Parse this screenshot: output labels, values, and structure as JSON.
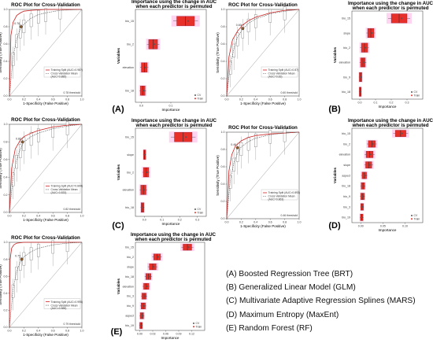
{
  "key_lines": [
    "(A) Boosted Regression Tree (BRT)",
    "(B) Generalized Linear Model (GLM)",
    "(C) Multivariate Adaptive Regression Splines (MARS)",
    "(D) Maximum Entropy (MaxEnt)",
    "(E) Random Forest (RF)"
  ],
  "colors": {
    "train": "#cc2222",
    "cv": "#444444",
    "box": "#e8302a",
    "halo": "#ff66cc",
    "ref": "#999999"
  },
  "chart_data": [
    {
      "panel": "(A)",
      "roc": {
        "type": "line",
        "title": "ROC Plot for Cross-Validation",
        "xlabel": "1-Specificity (False Positive)",
        "ylabel": "Sensitivity (True Positive)",
        "xlim": [
          0,
          1
        ],
        "ylim": [
          0,
          1
        ],
        "legend": [
          "Training Split (AUC=0.98?)",
          "Cross-Validation Mean",
          "(AUC=0.885)"
        ],
        "threshold_label": "0.78 threshold",
        "cutoff_label": "0.78",
        "threshold_point": [
          0.16,
          0.8
        ],
        "series": [
          {
            "name": "Training Split",
            "x": [
              0,
              0.02,
              0.05,
              0.1,
              0.15,
              0.2,
              0.3,
              0.5,
              0.7,
              1
            ],
            "y": [
              0,
              0.7,
              0.85,
              0.93,
              0.96,
              0.98,
              0.99,
              1,
              1,
              1
            ]
          },
          {
            "name": "Cross-Validation Mean",
            "x": [
              0,
              0.05,
              0.1,
              0.15,
              0.2,
              0.3,
              0.4,
              0.5,
              0.7,
              1
            ],
            "y": [
              0,
              0.45,
              0.66,
              0.77,
              0.83,
              0.9,
              0.94,
              0.96,
              0.99,
              1
            ]
          }
        ]
      },
      "importance": {
        "type": "bar",
        "title": "Importance using the change in AUC when each predictor is permuted",
        "xlabel": "Importance",
        "ylabel": "Variables",
        "xlim": [
          -0.02,
          0.22
        ],
        "xticks": [
          "0.0",
          "0.1"
        ],
        "legend": [
          "CV",
          "Train"
        ],
        "categories": [
          "bio_15",
          "bio_2",
          "elevation",
          "bio_18"
        ],
        "values": [
          0.15,
          0.04,
          0.01,
          0.005
        ],
        "spread": [
          0.03,
          0.015,
          0.01,
          0.008
        ]
      }
    },
    {
      "panel": "(B)",
      "roc": {
        "type": "line",
        "title": "ROC Plot for Cross-Validation",
        "xlabel": "1-Specificity (False Positive)",
        "ylabel": "Sensitivity (True Positive)",
        "xlim": [
          0,
          1
        ],
        "ylim": [
          0,
          1
        ],
        "legend": [
          "Training Split (AUC=0.87)",
          "Cross-Validation Mean",
          "(AUC=0.83)"
        ],
        "threshold_label": "0.60 threshold",
        "cutoff_label": "0.60",
        "threshold_point": [
          0.22,
          0.78
        ],
        "series": [
          {
            "name": "Training Split",
            "x": [
              0,
              0.03,
              0.08,
              0.15,
              0.22,
              0.3,
              0.4,
              0.6,
              0.8,
              1
            ],
            "y": [
              0,
              0.45,
              0.65,
              0.75,
              0.82,
              0.87,
              0.91,
              0.96,
              0.99,
              1
            ]
          },
          {
            "name": "Cross-Validation Mean",
            "x": [
              0,
              0.05,
              0.1,
              0.15,
              0.22,
              0.3,
              0.4,
              0.6,
              0.8,
              1
            ],
            "y": [
              0,
              0.35,
              0.55,
              0.68,
              0.77,
              0.84,
              0.89,
              0.95,
              0.98,
              1
            ]
          }
        ]
      },
      "importance": {
        "type": "bar",
        "title": "Importance using the change in AUC when each predictor is permuted",
        "xlabel": "Importance",
        "ylabel": "Variables",
        "xlim": [
          -0.05,
          0.4
        ],
        "xticks": [
          "0.0",
          "0.1",
          "0.2",
          "0.3"
        ],
        "legend": [
          "CV",
          "Train"
        ],
        "categories": [
          "bio_15",
          "slope",
          "bio_2",
          "elevation",
          "bio_9",
          "bio_18"
        ],
        "values": [
          0.25,
          0.07,
          0.03,
          0.02,
          0.005,
          0.003
        ],
        "spread": [
          0.05,
          0.02,
          0.02,
          0.015,
          0.008,
          0.006
        ]
      }
    },
    {
      "panel": "(C)",
      "roc": {
        "type": "line",
        "title": "ROC Plot for Cross-Validation",
        "xlabel": "1-Specificity (False Positive)",
        "ylabel": "Sensitivity (True Positive)",
        "xlim": [
          0,
          1
        ],
        "ylim": [
          0,
          1
        ],
        "legend": [
          "Training Split (AUC=0.844)",
          "Cross-Validation Mean",
          "(AUC=0.833)"
        ],
        "threshold_label": "0.82 threshold",
        "cutoff_label": "0.82",
        "threshold_point": [
          0.18,
          0.8
        ],
        "series": [
          {
            "name": "Training Split",
            "x": [
              0,
              0.03,
              0.08,
              0.15,
              0.2,
              0.3,
              0.4,
              0.6,
              0.8,
              1
            ],
            "y": [
              0,
              0.5,
              0.72,
              0.82,
              0.86,
              0.9,
              0.93,
              0.97,
              0.99,
              1
            ]
          },
          {
            "name": "Cross-Validation Mean",
            "x": [
              0,
              0.05,
              0.1,
              0.15,
              0.2,
              0.3,
              0.4,
              0.6,
              0.8,
              1
            ],
            "y": [
              0,
              0.4,
              0.6,
              0.72,
              0.8,
              0.86,
              0.9,
              0.95,
              0.98,
              1
            ]
          }
        ]
      },
      "importance": {
        "type": "bar",
        "title": "Importance using the change in AUC when each predictor is permuted",
        "xlabel": "Importance",
        "ylabel": "Variables",
        "xlim": [
          -0.05,
          0.35
        ],
        "xticks": [
          "0.0",
          "0.1",
          "0.2",
          "0.3"
        ],
        "legend": [
          "CV",
          "Train"
        ],
        "categories": [
          "bio_15",
          "slope",
          "bio_2",
          "elevation",
          "bio_18"
        ],
        "values": [
          0.22,
          0.002,
          0.01,
          -0.005,
          -0.01
        ],
        "spread": [
          0.05,
          0.006,
          0.015,
          0.015,
          0.008
        ]
      }
    },
    {
      "panel": "(D)",
      "roc": {
        "type": "line",
        "title": "ROC Plot for Cross-Validation",
        "xlabel": "1-Specificity (False Positive)",
        "ylabel": "Sensitivity (True Positive)",
        "xlim": [
          0,
          1
        ],
        "ylim": [
          0,
          1
        ],
        "legend": [
          "Training Split (AUC=0.893)",
          "Cross-Validation Mean",
          "(AUC=0.863)"
        ],
        "threshold_label": "0.46 threshold",
        "cutoff_label": "0.46",
        "threshold_point": [
          0.15,
          0.82
        ],
        "series": [
          {
            "name": "Training Split",
            "x": [
              0,
              0.03,
              0.07,
              0.12,
              0.2,
              0.3,
              0.4,
              0.6,
              0.8,
              1
            ],
            "y": [
              0,
              0.55,
              0.74,
              0.84,
              0.9,
              0.94,
              0.96,
              0.98,
              0.99,
              1
            ]
          },
          {
            "name": "Cross-Validation Mean",
            "x": [
              0,
              0.05,
              0.1,
              0.15,
              0.2,
              0.3,
              0.4,
              0.6,
              0.8,
              1
            ],
            "y": [
              0,
              0.45,
              0.65,
              0.76,
              0.83,
              0.89,
              0.93,
              0.97,
              0.99,
              1
            ]
          }
        ]
      },
      "importance": {
        "type": "bar",
        "title": "Importance using the change in AUC when each predictor is permuted",
        "xlabel": "Importance",
        "ylabel": "Variables",
        "xlim": [
          -0.02,
          0.14
        ],
        "xticks": [
          "0.00",
          "0.05",
          "0.10"
        ],
        "legend": [
          "CV",
          "Train"
        ],
        "categories": [
          "bio_15",
          "bio_2",
          "elevation",
          "slope",
          "aspect",
          "bio_18",
          "bio_9",
          "bio_3",
          "bio_19"
        ],
        "values": [
          0.09,
          0.025,
          0.02,
          0.018,
          0.008,
          0.005,
          0.004,
          0.003,
          0.002
        ],
        "spread": [
          0.012,
          0.008,
          0.008,
          0.007,
          0.005,
          0.004,
          0.004,
          0.003,
          0.003
        ]
      }
    },
    {
      "panel": "(E)",
      "roc": {
        "type": "line",
        "title": "ROC Plot for Cross-Validation",
        "xlabel": "1-Specificity (False Positive)",
        "ylabel": "Sensitivity (True Positive)",
        "xlim": [
          0,
          1
        ],
        "ylim": [
          0,
          1
        ],
        "legend": [
          "Training Split (AUC=0.995)",
          "Cross-Validation Mean",
          "(AUC=0.888)"
        ],
        "threshold_label": "0.79 threshold",
        "cutoff_label": "0.79",
        "threshold_point": [
          0.17,
          0.8
        ],
        "series": [
          {
            "name": "Training Split",
            "x": [
              0,
              0.01,
              0.03,
              0.06,
              0.1,
              0.2,
              0.4,
              0.6,
              0.8,
              1
            ],
            "y": [
              0,
              0.8,
              0.93,
              0.97,
              0.99,
              1,
              1,
              1,
              1,
              1
            ]
          },
          {
            "name": "Cross-Validation Mean",
            "x": [
              0,
              0.05,
              0.1,
              0.15,
              0.2,
              0.3,
              0.4,
              0.6,
              0.8,
              1
            ],
            "y": [
              0,
              0.45,
              0.66,
              0.77,
              0.83,
              0.89,
              0.93,
              0.97,
              0.99,
              1
            ]
          }
        ]
      },
      "importance": {
        "type": "bar",
        "title": "Importance using the change in AUC when each predictor is permuted",
        "xlabel": "Importance",
        "ylabel": "Variables",
        "xlim": [
          -0.01,
          0.15
        ],
        "xticks": [
          "0.00",
          "0.03",
          "0.06",
          "0.09",
          "0.12"
        ],
        "legend": [
          "CV",
          "Train"
        ],
        "categories": [
          "bio_15",
          "bio_2",
          "slope",
          "bio_18",
          "elevation",
          "bio_3",
          "bio_9",
          "aspect",
          "bio_19"
        ],
        "values": [
          0.11,
          0.04,
          0.03,
          0.02,
          0.015,
          0.01,
          0.008,
          0.005,
          0.003
        ],
        "spread": [
          0.01,
          0.008,
          0.008,
          0.006,
          0.006,
          0.005,
          0.005,
          0.004,
          0.003
        ]
      }
    }
  ]
}
